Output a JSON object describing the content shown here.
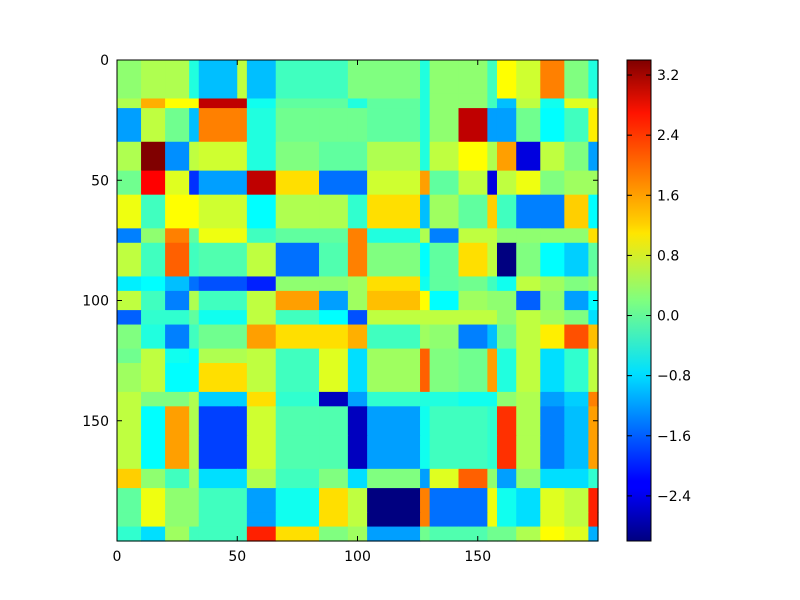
{
  "chart_data": {
    "type": "heatmap",
    "title": "",
    "xlabel": "",
    "ylabel": "",
    "x_range": [
      0,
      200
    ],
    "y_range": [
      0,
      200
    ],
    "y_inverted": true,
    "grid": false,
    "x_ticks": [
      "0",
      "50",
      "100",
      "150"
    ],
    "y_ticks": [
      "0",
      "50",
      "100",
      "150"
    ],
    "colormap": "jet",
    "colorbar": {
      "min": -3.0,
      "max": 3.4,
      "ticks": [
        "3.2",
        "2.4",
        "1.6",
        "0.8",
        "0.0",
        "−0.8",
        "−1.6",
        "−2.4"
      ]
    },
    "x_edges": [
      0,
      10,
      20,
      30,
      34,
      50,
      54,
      66,
      84,
      96,
      104,
      126,
      130,
      142,
      154,
      158,
      166,
      176,
      186,
      196,
      200
    ],
    "y_edges": [
      0,
      14,
      16,
      20,
      34,
      46,
      56,
      70,
      76,
      90,
      96,
      104,
      110,
      120,
      126,
      138,
      144,
      156,
      170,
      178,
      188,
      194,
      200
    ],
    "values": [
      [
        0.3,
        0.5,
        0.5,
        -0.4,
        -1.0,
        0.6,
        -1.0,
        -0.2,
        -0.2,
        0.2,
        0.2,
        -0.4,
        0.3,
        0.3,
        -0.2,
        1.0,
        0.7,
        1.8,
        0.2,
        -0.4,
        0.2
      ],
      [
        0.3,
        0.5,
        0.5,
        -0.4,
        -1.0,
        0.6,
        -1.0,
        -0.2,
        -0.2,
        0.2,
        0.2,
        -0.4,
        0.3,
        0.3,
        -0.2,
        1.0,
        0.7,
        1.8,
        0.2,
        -0.4,
        0.2
      ],
      [
        0.5,
        1.5,
        1.0,
        1.0,
        3.0,
        3.0,
        -0.5,
        0.0,
        0.0,
        -0.4,
        0.0,
        -0.4,
        0.3,
        0.3,
        -0.2,
        -1.0,
        0.6,
        -0.5,
        0.8,
        0.8,
        0.2
      ],
      [
        -1.2,
        0.6,
        0.1,
        -1.0,
        1.8,
        1.8,
        -0.4,
        0.1,
        0.1,
        0.1,
        0.0,
        -0.4,
        0.3,
        3.0,
        -1.2,
        -1.2,
        0.1,
        -0.6,
        -0.2,
        1.1,
        0.0
      ],
      [
        0.5,
        3.4,
        -1.3,
        0.6,
        0.7,
        0.7,
        -0.4,
        0.2,
        0.0,
        0.0,
        0.5,
        -0.4,
        0.6,
        1.0,
        0.5,
        1.6,
        -2.4,
        0.6,
        0.2,
        -1.2,
        0.5
      ],
      [
        0.1,
        2.6,
        0.8,
        -1.9,
        -1.2,
        -1.2,
        3.0,
        1.2,
        -1.5,
        -1.5,
        0.7,
        1.6,
        0.0,
        0.6,
        -2.4,
        0.6,
        0.9,
        0.2,
        0.4,
        0.4,
        0.6
      ],
      [
        0.9,
        -0.2,
        1.0,
        1.0,
        0.7,
        0.7,
        -0.6,
        0.5,
        0.5,
        -0.3,
        1.2,
        -1.0,
        0.4,
        0.0,
        1.3,
        -0.2,
        -1.4,
        -1.4,
        1.3,
        -0.6,
        0.6
      ],
      [
        -1.4,
        0.3,
        1.8,
        0.0,
        0.9,
        0.9,
        -0.2,
        0.0,
        0.0,
        1.8,
        -0.4,
        0.5,
        -1.4,
        0.6,
        0.6,
        0.3,
        0.3,
        0.3,
        0.3,
        1.2,
        0.2
      ],
      [
        0.6,
        -0.2,
        2.0,
        -0.2,
        -0.1,
        -0.1,
        0.6,
        -1.5,
        -0.1,
        1.8,
        0.2,
        -0.6,
        0.0,
        1.2,
        0.6,
        -3.0,
        0.2,
        -0.6,
        -0.9,
        0.0,
        2.3
      ],
      [
        -0.7,
        -0.6,
        -1.0,
        -1.5,
        -1.7,
        -1.7,
        -2.0,
        0.3,
        0.3,
        0.4,
        1.2,
        -0.5,
        0.0,
        0.1,
        -0.2,
        -0.5,
        0.6,
        0.4,
        0.2,
        0.3,
        0.3
      ],
      [
        0.6,
        -0.2,
        -1.4,
        0.5,
        -0.2,
        -0.2,
        0.6,
        1.6,
        -1.2,
        0.4,
        1.4,
        1.0,
        -0.6,
        0.4,
        0.3,
        0.3,
        -1.6,
        0.3,
        -1.2,
        -0.6,
        0.6
      ],
      [
        -1.6,
        -0.3,
        -0.3,
        0.0,
        -0.5,
        -0.5,
        0.6,
        -0.2,
        -0.6,
        -1.7,
        0.6,
        0.6,
        0.6,
        0.6,
        0.6,
        0.3,
        0.6,
        0.4,
        0.2,
        -0.8,
        2.0
      ],
      [
        0.2,
        -0.4,
        -1.4,
        -0.2,
        0.1,
        0.1,
        1.6,
        1.2,
        1.2,
        1.5,
        -0.2,
        0.4,
        0.3,
        -1.4,
        -1.0,
        0.1,
        0.6,
        1.1,
        2.1,
        1.4,
        1.6
      ],
      [
        0.1,
        0.6,
        -0.5,
        -0.6,
        0.5,
        0.5,
        0.6,
        -0.2,
        0.8,
        -0.8,
        0.4,
        2.0,
        0.2,
        0.1,
        1.6,
        -0.4,
        0.6,
        -0.8,
        -0.3,
        0.6,
        1.2
      ],
      [
        0.4,
        0.6,
        -0.6,
        -0.6,
        1.2,
        1.2,
        0.6,
        -0.2,
        0.8,
        -0.8,
        0.4,
        2.0,
        0.2,
        0.1,
        1.6,
        -0.4,
        0.6,
        -0.8,
        -0.3,
        0.6,
        1.2
      ],
      [
        0.6,
        0.2,
        0.2,
        0.5,
        -0.9,
        -0.9,
        1.2,
        -0.3,
        -2.6,
        -1.2,
        -0.3,
        -0.4,
        -0.4,
        -0.5,
        -0.5,
        0.3,
        0.5,
        -1.2,
        -0.9,
        1.8,
        -1.6
      ],
      [
        0.6,
        -0.6,
        1.6,
        0.5,
        -1.8,
        -1.8,
        0.7,
        -0.1,
        -0.1,
        -2.6,
        -1.2,
        -0.5,
        -0.2,
        -0.2,
        -0.3,
        2.3,
        0.5,
        -1.4,
        -1.0,
        1.6,
        -0.6
      ],
      [
        0.6,
        -0.6,
        1.6,
        0.5,
        -1.8,
        -1.8,
        0.7,
        -0.1,
        -0.1,
        -2.6,
        -1.2,
        -0.5,
        -0.2,
        -0.2,
        -0.3,
        2.3,
        0.5,
        -1.4,
        -1.0,
        1.6,
        -0.6
      ],
      [
        1.3,
        0.3,
        -0.2,
        0.4,
        -0.8,
        -0.8,
        0.5,
        -0.2,
        0.2,
        -0.8,
        0.2,
        -1.2,
        0.8,
        2.0,
        0.3,
        -1.2,
        0.3,
        -0.8,
        -0.8,
        -0.3,
        -2.6
      ],
      [
        0.0,
        0.9,
        0.3,
        0.3,
        -0.2,
        -0.2,
        -1.2,
        -0.5,
        1.2,
        0.6,
        -3.0,
        1.8,
        -1.5,
        -1.5,
        0.9,
        -0.5,
        -0.8,
        0.8,
        0.6,
        2.4,
        0.4
      ],
      [
        0.0,
        0.9,
        0.3,
        0.3,
        -0.2,
        -0.2,
        -1.2,
        -0.5,
        1.2,
        0.6,
        -3.0,
        1.8,
        -1.5,
        -1.5,
        0.9,
        -0.5,
        -0.8,
        0.8,
        0.6,
        2.4,
        0.4
      ],
      [
        -0.3,
        -0.8,
        0.4,
        -0.2,
        -0.2,
        -0.2,
        2.4,
        1.2,
        0.2,
        0.4,
        -1.2,
        0.1,
        -0.1,
        -0.1,
        0.1,
        0.1,
        0.5,
        1.0,
        0.8,
        -1.1,
        1.3
      ]
    ]
  }
}
